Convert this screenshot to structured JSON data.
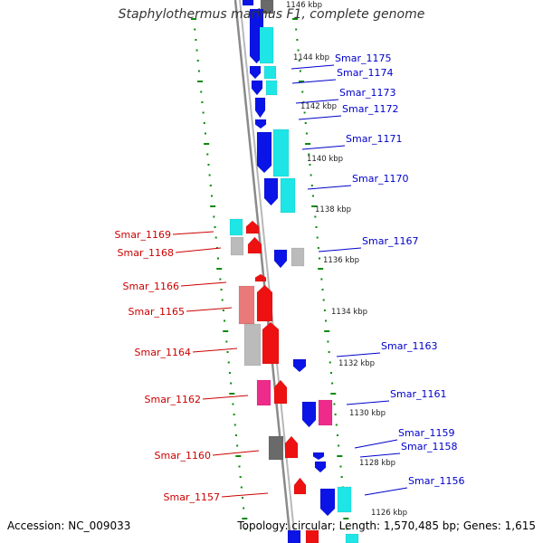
{
  "title": "Staphylothermus marinus F1, complete genome",
  "footer": {
    "accession": "Accession: NC_009033",
    "summary": "Topology: circular; Length: 1,570,485 bp; Genes: 1,615"
  },
  "colors": {
    "forward_label": "#0000cc",
    "reverse_label": "#cc0000",
    "backbone": "#8a8a8a",
    "tick_dots": "#0a8a0a",
    "blue": "#0a14e6",
    "cyan": "#1ee6e6",
    "red": "#ee1111",
    "pink": "#ee2a8a",
    "salmon": "#ea7a7a",
    "gray": "#bbbbbb",
    "darkgray": "#6a6a6a"
  },
  "kbp_labels": [
    "1146 kbp",
    "1144 kbp",
    "1142 kbp",
    "1140 kbp",
    "1138 kbp",
    "1136 kbp",
    "1134 kbp",
    "1132 kbp",
    "1130 kbp",
    "1128 kbp",
    "1126 kbp"
  ],
  "forward_genes": [
    "Smar_1175",
    "Smar_1174",
    "Smar_1173",
    "Smar_1172",
    "Smar_1171",
    "Smar_1170",
    "Smar_1167",
    "Smar_1163",
    "Smar_1161",
    "Smar_1159",
    "Smar_1158",
    "Smar_1156"
  ],
  "reverse_genes": [
    "Smar_1169",
    "Smar_1168",
    "Smar_1166",
    "Smar_1165",
    "Smar_1164",
    "Smar_1162",
    "Smar_1160",
    "Smar_1157"
  ]
}
